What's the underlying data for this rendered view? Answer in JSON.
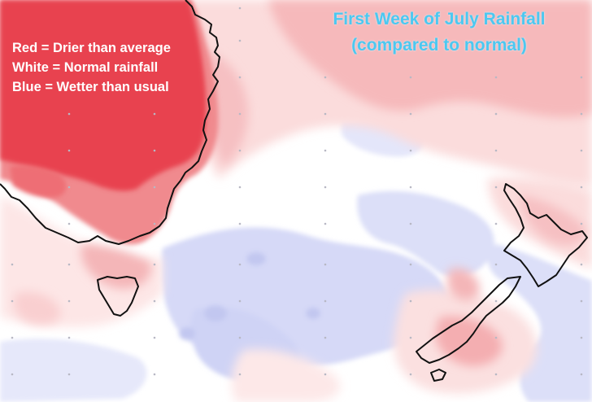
{
  "title": {
    "line1": "First Week of July Rainfall",
    "line2": "(compared to normal)"
  },
  "legend": [
    {
      "label": "Red = Drier than average",
      "color": "#e8434f"
    },
    {
      "label": "White = Normal rainfall",
      "color": "#ffffff"
    },
    {
      "label": "Blue = Wetter than usual",
      "color": "#c8cdf5"
    }
  ],
  "colors": {
    "dry_strong": "#e8434f",
    "dry_medium": "#f08a8e",
    "dry_light": "#f7bcbd",
    "dry_faint": "#fbdede",
    "normal": "#ffffff",
    "wet_light": "#dcdff8",
    "wet_medium": "#c6cbf2",
    "coastline": "#111111",
    "grid_dot": "#b8b8c4",
    "title": "#4cc8f0"
  }
}
